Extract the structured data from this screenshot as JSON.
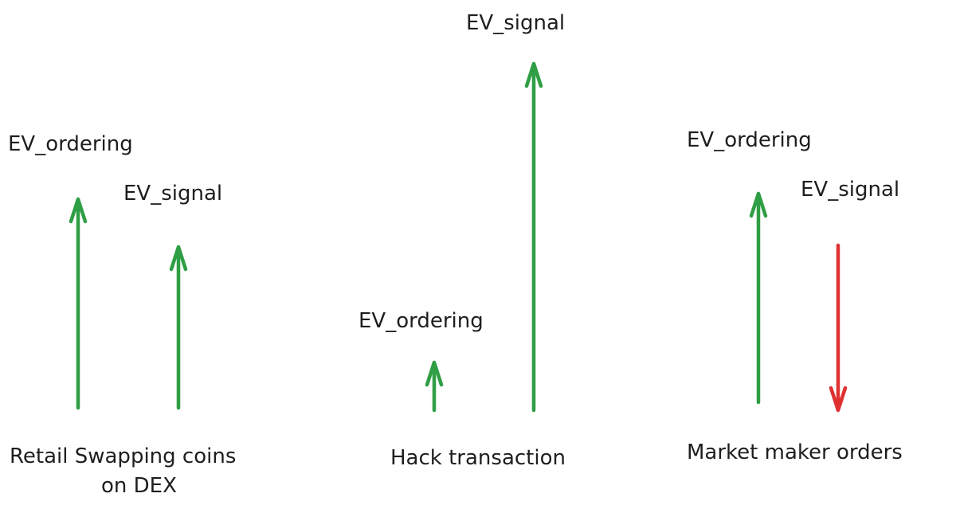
{
  "colors": {
    "increase": "#2f9e44",
    "decrease": "#e03131",
    "text": "#1e1e1e"
  },
  "groups": [
    {
      "caption_lines": [
        "Retail Swapping coins",
        "on DEX"
      ],
      "ordering_label": "EV_ordering",
      "signal_label": "EV_signal",
      "ordering_direction": "up",
      "signal_direction": "up"
    },
    {
      "caption_lines": [
        "Hack transaction"
      ],
      "ordering_label": "EV_ordering",
      "signal_label": "EV_signal",
      "ordering_direction": "up",
      "signal_direction": "up"
    },
    {
      "caption_lines": [
        "Market maker orders"
      ],
      "ordering_label": "EV_ordering",
      "signal_label": "EV_signal",
      "ordering_direction": "up",
      "signal_direction": "down"
    }
  ]
}
